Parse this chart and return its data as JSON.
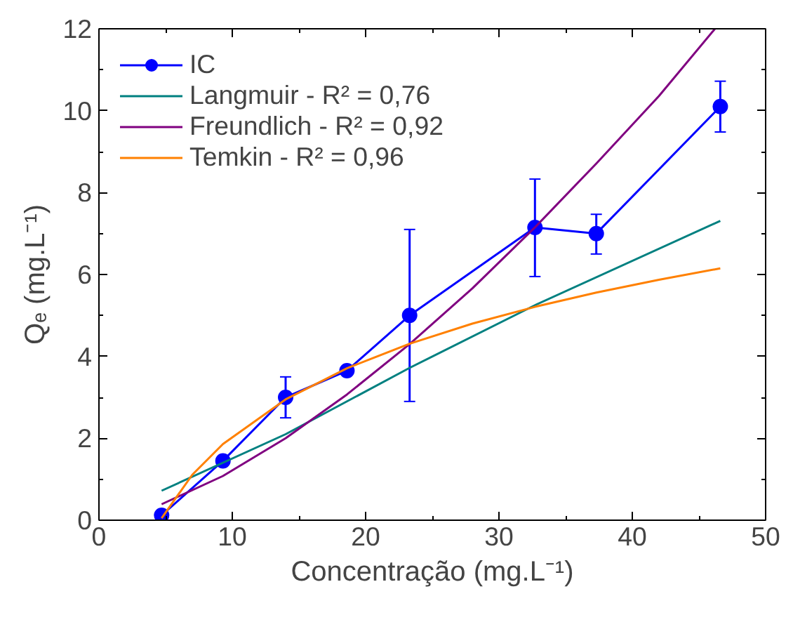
{
  "chart_data": {
    "type": "line",
    "xlabel": "Concentração (mg.L⁻¹)",
    "ylabel": "Qₑ (mg.L⁻¹)",
    "xlim": [
      0,
      50
    ],
    "ylim": [
      0,
      12
    ],
    "xticks": [
      0,
      10,
      20,
      30,
      40,
      50
    ],
    "yticks": [
      0,
      2,
      4,
      6,
      8,
      10,
      12
    ],
    "grid": false,
    "legend": "top left",
    "line_style": "solid",
    "series": [
      {
        "name": "IC",
        "color": "#0000ff",
        "marker": "circle",
        "x": [
          4.7,
          9.3,
          14.0,
          18.6,
          23.3,
          32.7,
          37.3,
          46.6
        ],
        "values": [
          0.12,
          1.45,
          3.0,
          3.65,
          5.0,
          7.15,
          7.0,
          10.1
        ],
        "errors": [
          null,
          null,
          [
            2.5,
            3.5
          ],
          null,
          [
            2.9,
            7.1
          ],
          [
            5.95,
            8.33
          ],
          [
            6.5,
            7.47
          ],
          [
            9.48,
            10.72
          ]
        ]
      },
      {
        "name": "Langmuir - R² = 0,76",
        "color": "#008080",
        "marker": "none",
        "x": [
          4.7,
          14.0,
          23.3,
          32.7,
          46.6
        ],
        "values": [
          0.72,
          2.1,
          3.72,
          5.25,
          7.31
        ]
      },
      {
        "name": "Freundlich - R² = 0,92",
        "color": "#800080",
        "marker": "none",
        "x": [
          4.7,
          9.3,
          14.0,
          18.6,
          23.3,
          28.0,
          32.7,
          37.3,
          42.0,
          46.2
        ],
        "values": [
          0.39,
          1.08,
          2.0,
          3.07,
          4.3,
          5.66,
          7.15,
          8.71,
          10.36,
          12.0
        ]
      },
      {
        "name": "Temkin - R² = 0,96",
        "color": "#ff8000",
        "marker": "none",
        "x": [
          4.7,
          7.0,
          9.3,
          14.0,
          18.6,
          23.3,
          28.0,
          32.7,
          37.3,
          42.0,
          46.6
        ],
        "values": [
          0.05,
          1.11,
          1.86,
          2.95,
          3.71,
          4.31,
          4.8,
          5.21,
          5.56,
          5.87,
          6.15
        ]
      }
    ]
  }
}
